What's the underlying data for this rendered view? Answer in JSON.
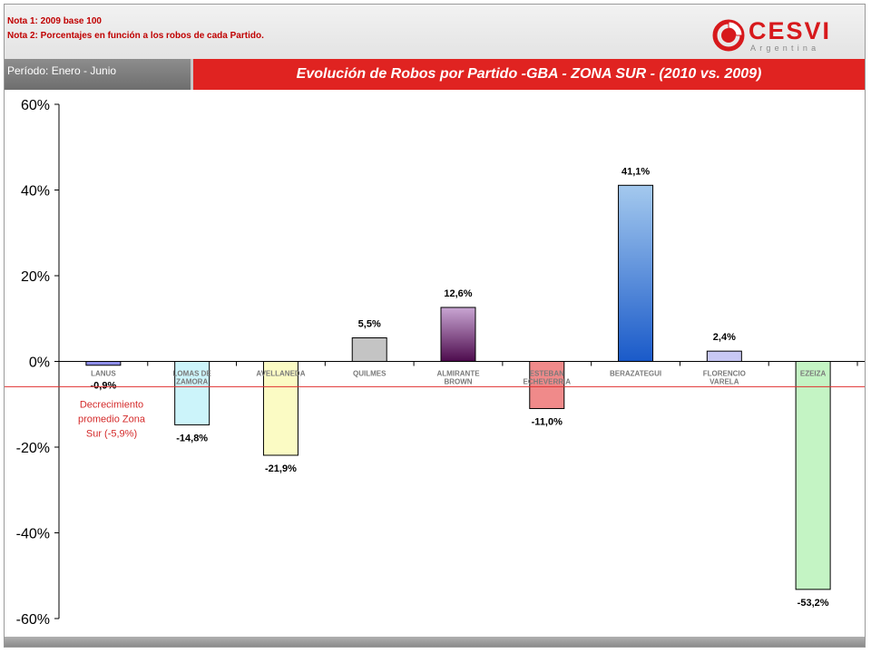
{
  "header": {
    "note1": "Nota 1: 2009 base 100",
    "note2": "Nota 2: Porcentajes en función a los robos de cada Partido."
  },
  "logo": {
    "brand": "CESVI",
    "sub": "Argentina"
  },
  "period": "Período: Enero - Junio",
  "title": {
    "main": "Evolución de Robos por Partido",
    "zone": " -GBA - ZONA SUR - (2010 vs. 2009)"
  },
  "chart_data": {
    "type": "bar",
    "title": "Evolución de Robos por Partido -GBA - ZONA SUR - (2010 vs. 2009)",
    "ylim": [
      -60,
      60
    ],
    "yticks": [
      60,
      40,
      20,
      0,
      -20,
      -40,
      -60
    ],
    "ytick_labels": [
      "60%",
      "40%",
      "20%",
      "0%",
      "-20%",
      "-40%",
      "-60%"
    ],
    "grid": false,
    "categories": [
      [
        "LANUS"
      ],
      [
        "LOMAS DE",
        "ZAMORA"
      ],
      [
        "AVELLANEDA"
      ],
      [
        "QUILMES"
      ],
      [
        "ALMIRANTE",
        "BROWN"
      ],
      [
        "ESTEBAN",
        "ECHEVERRIA"
      ],
      [
        "BERAZATEGUI"
      ],
      [
        "FLORENCIO",
        "VARELA"
      ],
      [
        "EZEIZA"
      ]
    ],
    "values": [
      -0.9,
      -14.8,
      -21.9,
      5.5,
      12.6,
      -11.0,
      41.1,
      2.4,
      -53.2
    ],
    "value_labels": [
      "-0,9%",
      "-14,8%",
      "-21,9%",
      "5,5%",
      "12,6%",
      "-11,0%",
      "41,1%",
      "2,4%",
      "-53,2%"
    ],
    "bar_colors": [
      [
        "#8e8ee8",
        "#8e8ee8"
      ],
      [
        "#ccf4fa",
        "#ccf4fa"
      ],
      [
        "#fbfbc4",
        "#fbfbc4"
      ],
      [
        "#c4c4c4",
        "#c4c4c4"
      ],
      [
        "#c9a6d3",
        "#4d0b4d"
      ],
      [
        "#f08a8a",
        "#f08a8a"
      ],
      [
        "#a4c9ee",
        "#1a5ac9"
      ],
      [
        "#c8c8f4",
        "#c8c8f4"
      ],
      [
        "#c4f4c4",
        "#c4f4c4"
      ]
    ],
    "average": {
      "value": -5.9,
      "color": "#e03030",
      "label": [
        "Decrecimiento",
        "promedio Zona",
        "Sur (-5,9%)"
      ]
    }
  }
}
